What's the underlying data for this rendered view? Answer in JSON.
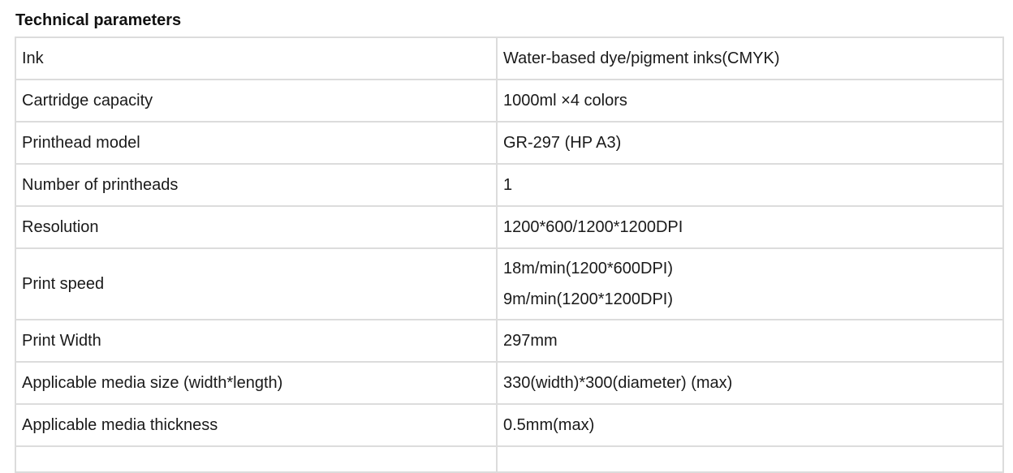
{
  "title": "Technical parameters",
  "rows": [
    {
      "label": "Ink",
      "value": [
        "Water-based dye/pigment inks(CMYK)"
      ]
    },
    {
      "label": "Cartridge capacity",
      "value": [
        "1000ml ×4 colors"
      ]
    },
    {
      "label": "Printhead model",
      "value": [
        "GR-297 (HP A3)"
      ]
    },
    {
      "label": "Number of printheads",
      "value": [
        "1"
      ]
    },
    {
      "label": "Resolution",
      "value": [
        "1200*600/1200*1200DPI"
      ]
    },
    {
      "label": "Print speed",
      "value": [
        "18m/min(1200*600DPI)",
        "9m/min(1200*1200DPI)"
      ]
    },
    {
      "label": "Print Width",
      "value": [
        "297mm"
      ]
    },
    {
      "label": "Applicable media size (width*length)",
      "value": [
        "330(width)*300(diameter) (max)"
      ]
    },
    {
      "label": "Applicable media thickness",
      "value": [
        "0.5mm(max)"
      ]
    }
  ]
}
